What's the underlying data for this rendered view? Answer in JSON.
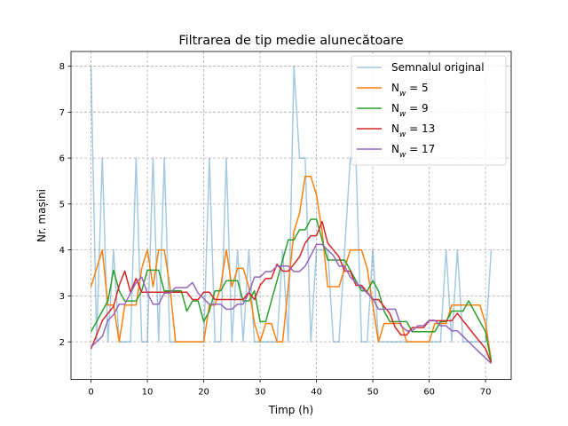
{
  "chart_data": {
    "type": "line",
    "title": "Filtrarea de tip medie alunecătoare",
    "xlabel": "Timp (h)",
    "ylabel": "Nr. mașini",
    "xlim": [
      -3.55,
      74.55
    ],
    "ylim": [
      1.18,
      8.32
    ],
    "xticks": [
      0,
      10,
      20,
      30,
      40,
      50,
      60,
      70
    ],
    "yticks": [
      2,
      3,
      4,
      5,
      6,
      7,
      8
    ],
    "grid": true,
    "legend_position": "top-right",
    "series": [
      {
        "name": "Semnalul original",
        "label_html": "Semnalul original",
        "color": "#1f77b4",
        "opacity": 0.4,
        "x": [
          0,
          1,
          2,
          3,
          4,
          5,
          6,
          7,
          8,
          9,
          10,
          11,
          12,
          13,
          14,
          15,
          16,
          17,
          18,
          19,
          20,
          21,
          22,
          23,
          24,
          25,
          26,
          27,
          28,
          29,
          30,
          31,
          32,
          33,
          34,
          35,
          36,
          37,
          38,
          39,
          40,
          41,
          42,
          43,
          44,
          45,
          46,
          47,
          48,
          49,
          50,
          51,
          52,
          53,
          54,
          55,
          56,
          57,
          58,
          59,
          60,
          61,
          62,
          63,
          64,
          65,
          66,
          67,
          68,
          69,
          70,
          71
        ],
        "y": [
          8,
          2,
          6,
          2,
          4,
          2,
          2,
          2,
          6,
          2,
          2,
          6,
          2,
          6,
          2,
          2,
          2,
          2,
          2,
          2,
          2,
          6,
          2,
          2,
          6,
          2,
          4,
          2,
          4,
          2,
          2,
          2,
          2,
          2,
          4,
          2,
          8,
          6,
          6,
          2,
          4,
          4,
          4,
          2,
          2,
          4,
          6,
          6,
          2,
          2,
          4,
          2,
          2,
          2,
          2,
          2,
          2,
          2,
          2,
          2,
          2,
          2,
          2,
          4,
          2,
          4,
          2,
          2,
          2,
          2,
          2,
          4
        ]
      },
      {
        "name": "N_w = 5",
        "label_html": "N<tspan font-style='italic' baseline-shift='sub' font-size='9'>w</tspan> = 5",
        "color": "#ff7f0e",
        "x": [
          0,
          1,
          2,
          3,
          4,
          5,
          6,
          7,
          8,
          9,
          10,
          11,
          12,
          13,
          14,
          15,
          16,
          17,
          18,
          19,
          20,
          21,
          22,
          23,
          24,
          25,
          26,
          27,
          28,
          29,
          30,
          31,
          32,
          33,
          34,
          35,
          36,
          37,
          38,
          39,
          40,
          41,
          42,
          43,
          44,
          45,
          46,
          47,
          48,
          49,
          50,
          51,
          52,
          53,
          54,
          55,
          56,
          57,
          58,
          59,
          60,
          61,
          62,
          63,
          64,
          65,
          66,
          67,
          68,
          69,
          70,
          71
        ],
        "y": [
          3.2,
          3.6,
          4.0,
          2.8,
          2.8,
          2.0,
          2.8,
          2.8,
          2.8,
          3.6,
          4.0,
          3.2,
          4.0,
          4.0,
          3.2,
          2.0,
          2.0,
          2.0,
          2.0,
          2.0,
          2.0,
          2.8,
          2.8,
          3.2,
          4.0,
          3.2,
          3.6,
          3.6,
          3.2,
          2.4,
          2.0,
          2.4,
          2.4,
          2.0,
          2.0,
          3.2,
          4.4,
          4.8,
          5.6,
          5.6,
          5.2,
          4.4,
          3.2,
          3.2,
          3.2,
          3.6,
          4.0,
          4.0,
          4.0,
          3.6,
          2.8,
          2.0,
          2.4,
          2.4,
          2.4,
          2.4,
          2.0,
          2.0,
          2.0,
          2.0,
          2.0,
          2.4,
          2.4,
          2.4,
          2.8,
          2.8,
          2.8,
          2.8,
          2.8,
          2.8,
          2.4,
          1.6
        ]
      },
      {
        "name": "N_w = 9",
        "label_html": "N<tspan font-style='italic' baseline-shift='sub' font-size='9'>w</tspan> = 9",
        "color": "#2ca02c",
        "x": [
          0,
          1,
          2,
          3,
          4,
          5,
          6,
          7,
          8,
          9,
          10,
          11,
          12,
          13,
          14,
          15,
          16,
          17,
          18,
          19,
          20,
          21,
          22,
          23,
          24,
          25,
          26,
          27,
          28,
          29,
          30,
          31,
          32,
          33,
          34,
          35,
          36,
          37,
          38,
          39,
          40,
          41,
          42,
          43,
          44,
          45,
          46,
          47,
          48,
          49,
          50,
          51,
          52,
          53,
          54,
          55,
          56,
          57,
          58,
          59,
          60,
          61,
          62,
          63,
          64,
          65,
          66,
          67,
          68,
          69,
          70,
          71
        ],
        "y": [
          2.22,
          2.44,
          2.67,
          2.89,
          3.56,
          3.11,
          2.89,
          2.89,
          2.89,
          3.11,
          3.56,
          3.56,
          3.56,
          3.11,
          3.11,
          3.11,
          3.11,
          2.67,
          2.89,
          2.89,
          2.44,
          2.67,
          3.11,
          3.11,
          3.33,
          3.33,
          3.33,
          2.89,
          2.89,
          3.11,
          2.44,
          2.44,
          2.89,
          3.33,
          3.78,
          4.22,
          4.22,
          4.44,
          4.44,
          4.67,
          4.67,
          4.22,
          3.78,
          3.78,
          3.78,
          3.78,
          3.56,
          3.33,
          3.11,
          3.11,
          3.33,
          3.11,
          2.67,
          2.44,
          2.44,
          2.44,
          2.44,
          2.22,
          2.22,
          2.22,
          2.22,
          2.22,
          2.44,
          2.44,
          2.67,
          2.67,
          2.67,
          2.89,
          2.67,
          2.44,
          2.22,
          1.56
        ]
      },
      {
        "name": "N_w = 13",
        "label_html": "N<tspan font-style='italic' baseline-shift='sub' font-size='9'>w</tspan> = 13",
        "color": "#d62728",
        "x": [
          0,
          1,
          2,
          3,
          4,
          5,
          6,
          7,
          8,
          9,
          10,
          11,
          12,
          13,
          14,
          15,
          16,
          17,
          18,
          19,
          20,
          21,
          22,
          23,
          24,
          25,
          26,
          27,
          28,
          29,
          30,
          31,
          32,
          33,
          34,
          35,
          36,
          37,
          38,
          39,
          40,
          41,
          42,
          43,
          44,
          45,
          46,
          47,
          48,
          49,
          50,
          51,
          52,
          53,
          54,
          55,
          56,
          57,
          58,
          59,
          60,
          61,
          62,
          63,
          64,
          65,
          66,
          67,
          68,
          69,
          70,
          71
        ],
        "y": [
          1.85,
          2.15,
          2.46,
          2.62,
          2.77,
          3.23,
          3.54,
          3.08,
          3.38,
          3.08,
          3.08,
          3.08,
          3.08,
          3.08,
          3.08,
          3.08,
          3.08,
          3.08,
          2.92,
          2.92,
          3.08,
          3.08,
          2.92,
          2.92,
          2.92,
          2.92,
          2.92,
          2.92,
          3.08,
          2.92,
          3.23,
          3.38,
          3.38,
          3.69,
          3.54,
          3.54,
          3.69,
          3.85,
          4.15,
          4.31,
          4.31,
          4.62,
          4.15,
          4.0,
          3.85,
          3.54,
          3.54,
          3.23,
          3.23,
          3.08,
          2.92,
          2.92,
          2.77,
          2.62,
          2.31,
          2.15,
          2.15,
          2.31,
          2.31,
          2.31,
          2.46,
          2.46,
          2.46,
          2.46,
          2.46,
          2.62,
          2.46,
          2.31,
          2.15,
          2.0,
          1.85,
          1.54
        ]
      },
      {
        "name": "N_w = 17",
        "label_html": "N<tspan font-style='italic' baseline-shift='sub' font-size='9'>w</tspan> = 17",
        "color": "#9467bd",
        "x": [
          0,
          1,
          2,
          3,
          4,
          5,
          6,
          7,
          8,
          9,
          10,
          11,
          12,
          13,
          14,
          15,
          16,
          17,
          18,
          19,
          20,
          21,
          22,
          23,
          24,
          25,
          26,
          27,
          28,
          29,
          30,
          31,
          32,
          33,
          34,
          35,
          36,
          37,
          38,
          39,
          40,
          41,
          42,
          43,
          44,
          45,
          46,
          47,
          48,
          49,
          50,
          51,
          52,
          53,
          54,
          55,
          56,
          57,
          58,
          59,
          60,
          61,
          62,
          63,
          64,
          65,
          66,
          67,
          68,
          69,
          70,
          71
        ],
        "y": [
          1.88,
          2.0,
          2.12,
          2.47,
          2.59,
          2.82,
          2.82,
          3.06,
          3.29,
          3.41,
          3.06,
          2.82,
          2.82,
          3.06,
          3.06,
          3.18,
          3.18,
          3.18,
          3.29,
          3.06,
          2.94,
          2.82,
          2.82,
          2.82,
          2.71,
          2.71,
          2.82,
          2.82,
          3.06,
          3.41,
          3.41,
          3.53,
          3.53,
          3.65,
          3.65,
          3.65,
          3.53,
          3.53,
          3.65,
          3.88,
          4.12,
          4.12,
          4.0,
          3.88,
          3.65,
          3.65,
          3.41,
          3.29,
          3.18,
          3.06,
          2.94,
          2.71,
          2.71,
          2.71,
          2.71,
          2.35,
          2.24,
          2.24,
          2.35,
          2.35,
          2.47,
          2.47,
          2.35,
          2.35,
          2.24,
          2.24,
          2.12,
          2.0,
          1.88,
          1.76,
          1.65,
          1.53
        ]
      }
    ]
  }
}
